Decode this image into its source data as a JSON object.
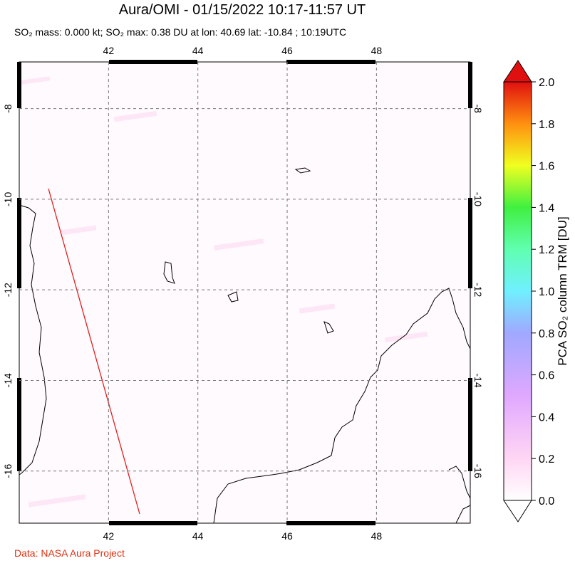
{
  "chart_data": {
    "type": "map",
    "title": "Aura/OMI - 01/15/2022 10:17-11:57 UT",
    "subtitle": "SO₂ mass: 0.000 kt; SO₂ max: 0.38 DU at lon: 40.69 lat: -10.84 ; 10:19UTC",
    "xlim": [
      40,
      50.1
    ],
    "xticks": [
      42,
      44,
      46,
      48
    ],
    "ylim": [
      -17.15,
      -6.97
    ],
    "yticks": [
      -8,
      -10,
      -12,
      -14,
      -16
    ],
    "grid": true,
    "colorbar_label": "PCA SO₂ column TRM [DU]",
    "clim": [
      0,
      2
    ],
    "cticks": [
      {
        "value": 0,
        "label": "0.0"
      },
      0.2,
      0.4,
      0.6,
      0.8,
      {
        "value": 1,
        "label": "1.0"
      },
      1.2,
      1.4,
      1.6,
      1.8,
      {
        "value": 2,
        "label": "2.0"
      }
    ],
    "credit": "Data: NASA Aura Project"
  }
}
